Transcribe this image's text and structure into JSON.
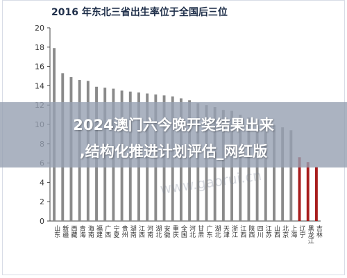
{
  "chart_data": {
    "type": "bar",
    "title": "2016 年东北三省出生率位于全国后三位",
    "ylim": [
      0,
      20
    ],
    "yticks": [
      0,
      2,
      4,
      6,
      8,
      10,
      12,
      14,
      16,
      18,
      20
    ],
    "grid": false,
    "legend": "none",
    "categories": [
      "山东",
      "新疆",
      "西藏",
      "青海",
      "海南",
      "福建",
      "广西",
      "宁夏",
      "贵州",
      "湖南",
      "江西",
      "河南",
      "湖北",
      "安徽",
      "重庆",
      "全国",
      "河北",
      "甘肃",
      "广东",
      "湖北",
      "天津",
      "浙江",
      "江西",
      "陕西",
      "四川",
      "江苏",
      "山西",
      "北京",
      "上海",
      "辽宁",
      "黑龙江",
      "吉林"
    ],
    "values": [
      17.9,
      15.3,
      14.9,
      14.6,
      14.5,
      13.9,
      13.8,
      13.7,
      13.5,
      13.4,
      13.3,
      13.2,
      13.1,
      13.0,
      12.9,
      12.7,
      12.5,
      12.2,
      12.0,
      11.8,
      11.5,
      11.4,
      11.0,
      10.7,
      10.5,
      10.2,
      9.9,
      9.7,
      9.4,
      6.6,
      6.1,
      5.6
    ],
    "colors": {
      "default": "#8a8a8a",
      "highlight": "#a81d1d"
    },
    "highlight_last": 3
  },
  "overlay": {
    "line1": "2024澳门六今晚开奖结果出来",
    "line2": ",结构化推进计划评估_网红版"
  },
  "watermark": {
    "text": "www.gaorui.cn"
  }
}
